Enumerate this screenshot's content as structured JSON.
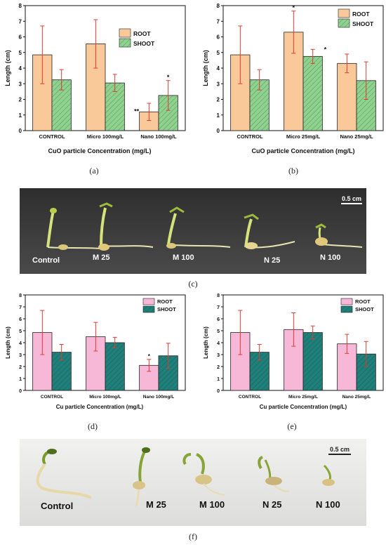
{
  "panels": {
    "a": "(a)",
    "b": "(b)",
    "c": "(c)",
    "d": "(d)",
    "e": "(e)",
    "f": "(f)"
  },
  "photo_c": {
    "labels": [
      "Control",
      "M 25",
      "M 100",
      "N 25",
      "N 100"
    ],
    "scale": "0.5 cm",
    "background": "#3a3a3a"
  },
  "photo_f": {
    "labels": [
      "Control",
      "M 25",
      "M 100",
      "N 25",
      "N 100"
    ],
    "scale": "0.5 cm",
    "background": "#e8e8e6"
  },
  "chart_data": [
    {
      "id": "a",
      "type": "bar",
      "categories": [
        "CONTROL",
        "Micro 100mg/L",
        "Nano 100mg/L"
      ],
      "series": [
        {
          "name": "ROOT",
          "values": [
            4.85,
            5.55,
            1.2
          ],
          "errors": [
            1.85,
            1.55,
            0.55
          ],
          "color": "#f9c99a",
          "hatch": false
        },
        {
          "name": "SHOOT",
          "values": [
            3.25,
            3.05,
            2.25
          ],
          "errors": [
            0.65,
            0.55,
            0.95
          ],
          "color": "#8fd28f",
          "hatch": true
        }
      ],
      "annotations": [
        {
          "category": 2,
          "series": 0,
          "text": "**"
        },
        {
          "category": 2,
          "series": 1,
          "text": "*"
        }
      ],
      "xlabel": "CuO particle Concentration (mg/L)",
      "ylabel": "Length (cm)",
      "ylim": [
        0,
        8
      ],
      "yticks": [
        0,
        1,
        2,
        3,
        4,
        5,
        6,
        7,
        8
      ],
      "legend": "top-right"
    },
    {
      "id": "b",
      "type": "bar",
      "categories": [
        "CONTROL",
        "Micro 25mg/L",
        "Nano 25mg/L"
      ],
      "series": [
        {
          "name": "ROOT",
          "values": [
            4.85,
            6.3,
            4.3
          ],
          "errors": [
            1.85,
            1.35,
            0.6
          ],
          "color": "#f9c99a",
          "hatch": false
        },
        {
          "name": "SHOOT",
          "values": [
            3.25,
            4.75,
            3.2
          ],
          "errors": [
            0.65,
            0.45,
            1.2
          ],
          "color": "#8fd28f",
          "hatch": true
        }
      ],
      "annotations": [
        {
          "category": 1,
          "series": 0,
          "text": "*"
        },
        {
          "category": 1,
          "series": 1,
          "text": "*"
        }
      ],
      "xlabel": "CuO particle Concentration (mg/L)",
      "ylabel": "Length (cm)",
      "ylim": [
        0,
        8
      ],
      "yticks": [
        0,
        1,
        2,
        3,
        4,
        5,
        6,
        7,
        8
      ],
      "legend": "top-right"
    },
    {
      "id": "d",
      "type": "bar",
      "categories": [
        "CONTROL",
        "Micro 100mg/L",
        "Nano 100mg/L"
      ],
      "series": [
        {
          "name": "ROOT",
          "values": [
            4.85,
            4.5,
            2.1
          ],
          "errors": [
            1.85,
            1.2,
            0.5
          ],
          "color": "#f7b8d8",
          "hatch": false
        },
        {
          "name": "SHOOT",
          "values": [
            3.2,
            4.0,
            2.9
          ],
          "errors": [
            0.65,
            0.45,
            1.05
          ],
          "color": "#1f7f7a",
          "hatch": true
        }
      ],
      "annotations": [
        {
          "category": 2,
          "series": 0,
          "text": "*"
        }
      ],
      "xlabel": "Cu particle Concentration (mg/L)",
      "ylabel": "Length (cm)",
      "ylim": [
        0,
        8
      ],
      "yticks": [
        0,
        1,
        2,
        3,
        4,
        5,
        6,
        7,
        8
      ],
      "legend": "top-right"
    },
    {
      "id": "e",
      "type": "bar",
      "categories": [
        "CONTROL",
        "Micro 25mg/L",
        "Nano 25mg/L"
      ],
      "series": [
        {
          "name": "ROOT",
          "values": [
            4.85,
            5.1,
            3.9
          ],
          "errors": [
            1.85,
            1.4,
            0.8
          ],
          "color": "#f7b8d8",
          "hatch": false
        },
        {
          "name": "SHOOT",
          "values": [
            3.2,
            4.85,
            3.05
          ],
          "errors": [
            0.65,
            0.55,
            1.05
          ],
          "color": "#1f7f7a",
          "hatch": true
        }
      ],
      "annotations": [],
      "xlabel": "Cu particle Concentration (mg/L)",
      "ylabel": "Length (cm)",
      "ylim": [
        0,
        8
      ],
      "yticks": [
        0,
        1,
        2,
        3,
        4,
        5,
        6,
        7,
        8
      ],
      "legend": "top-right"
    }
  ]
}
